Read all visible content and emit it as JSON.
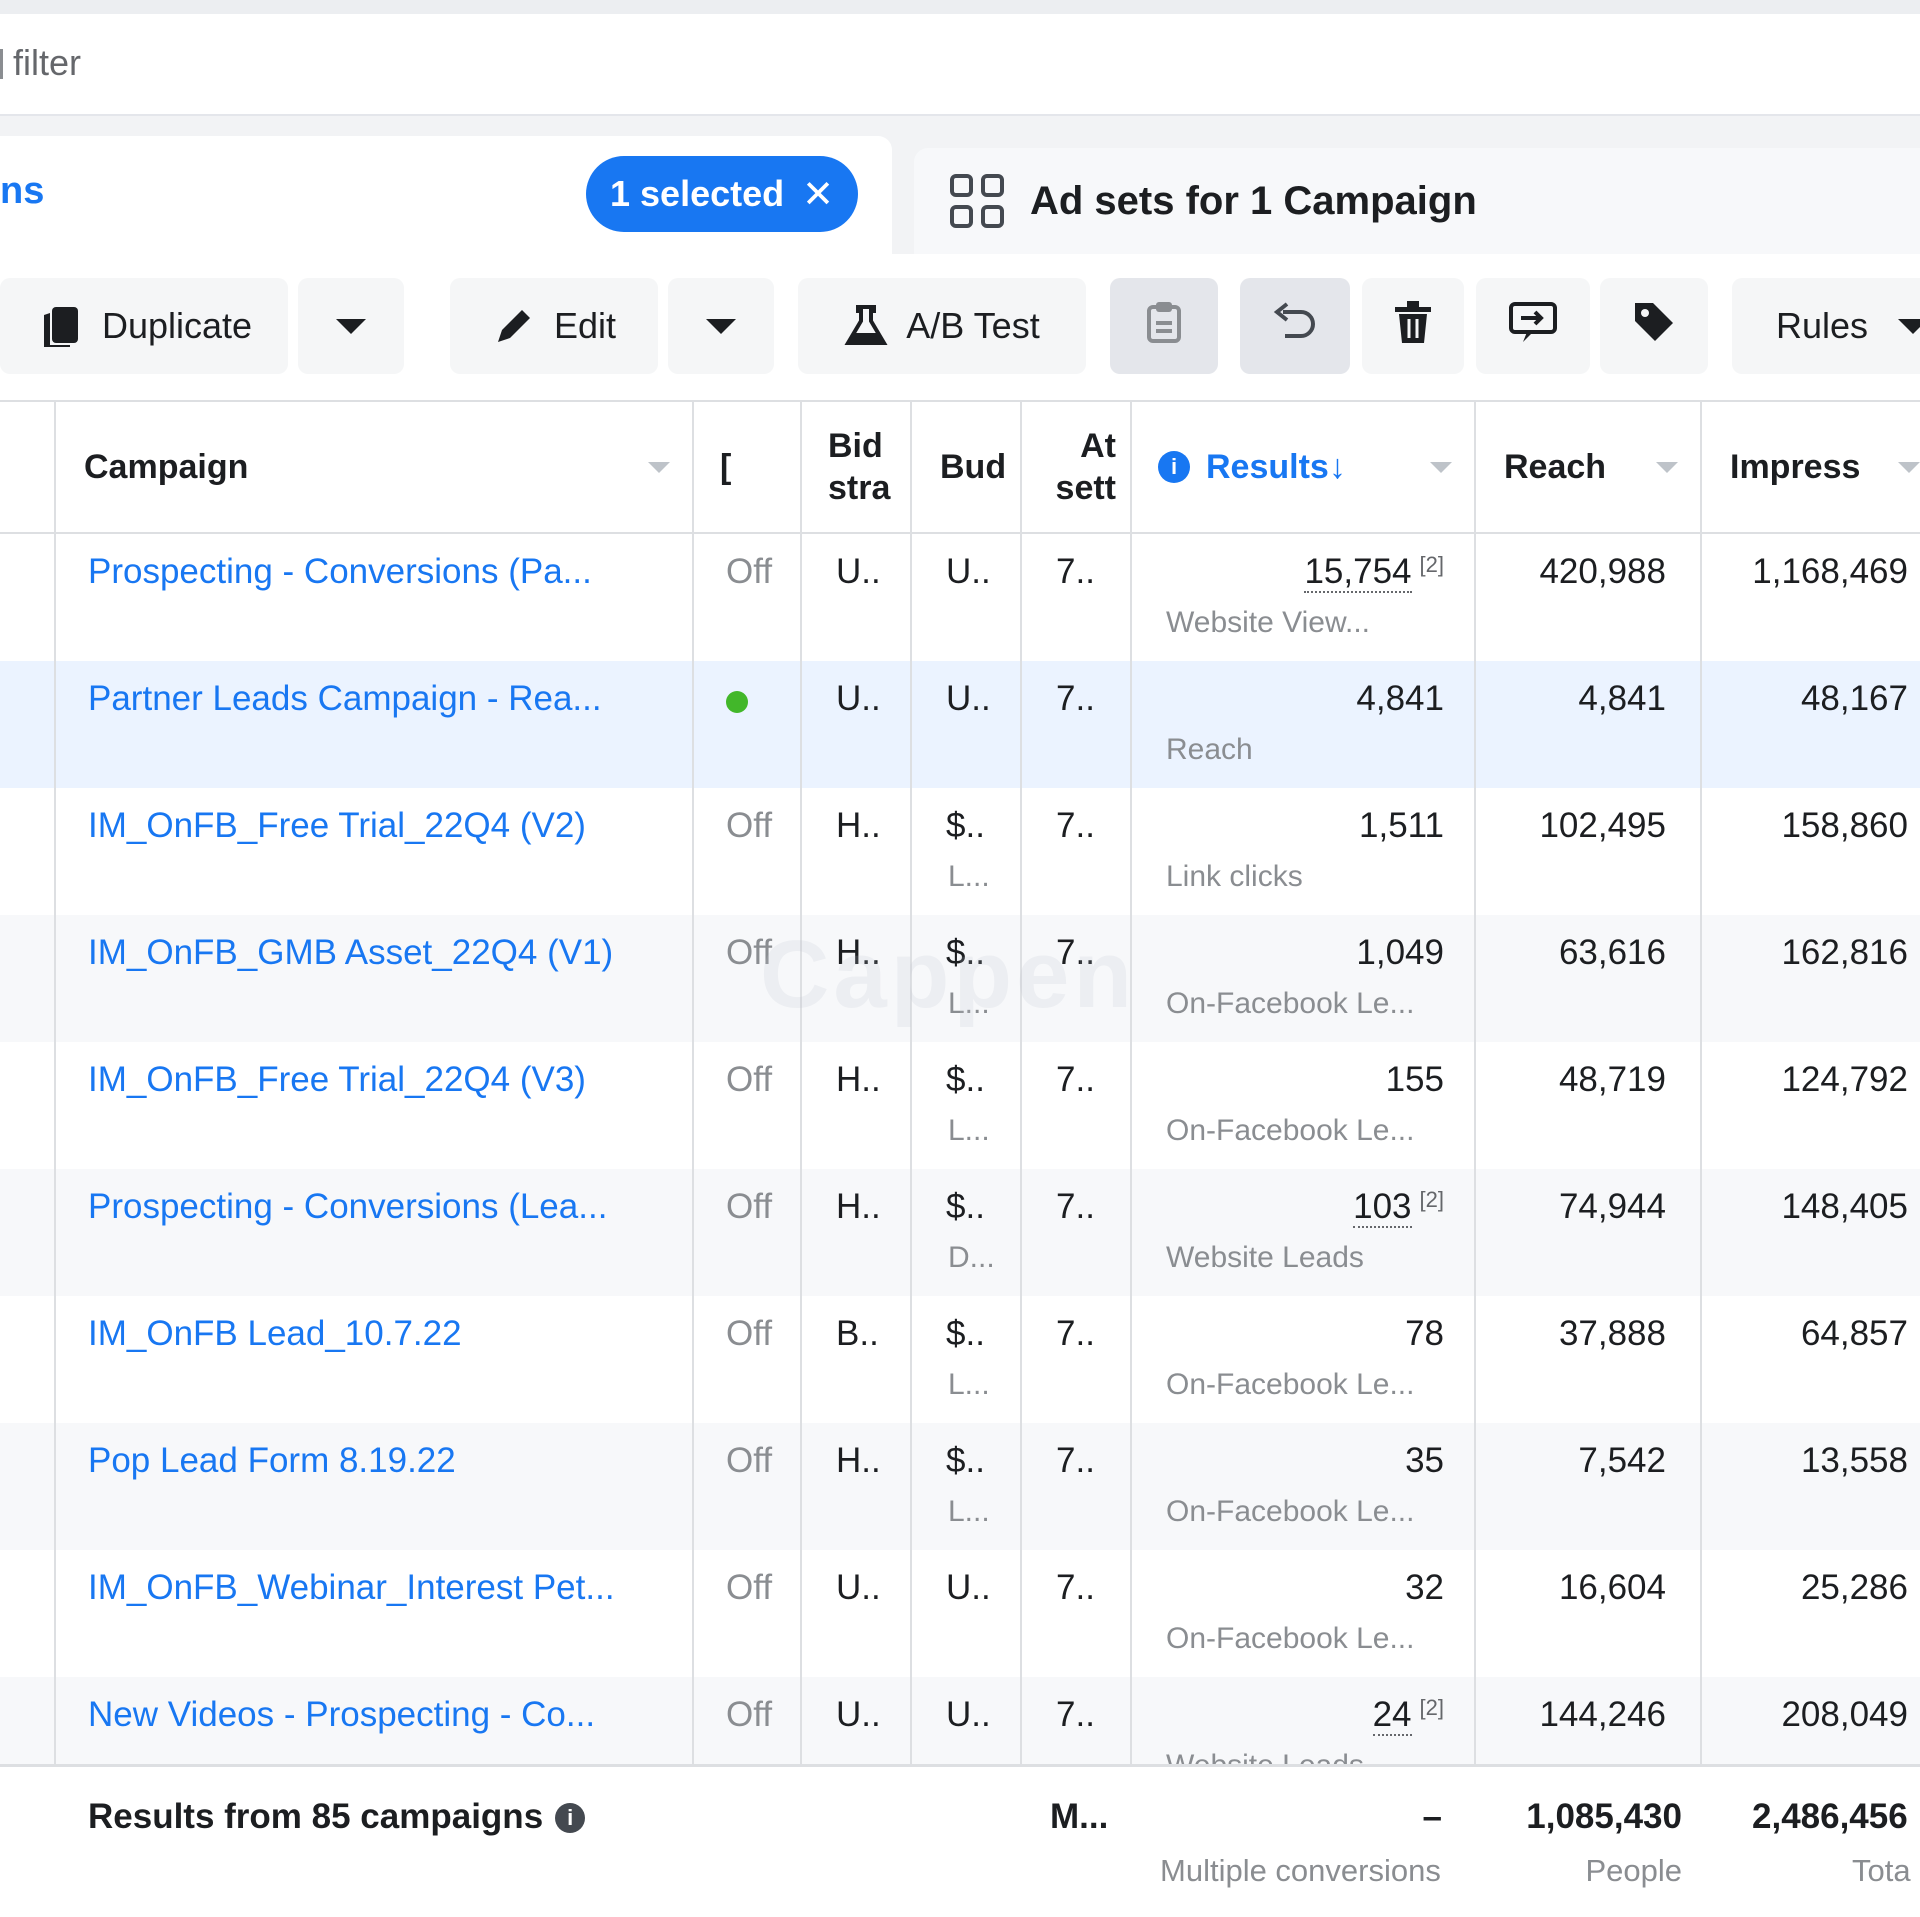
{
  "filter": {
    "placeholder": "filter"
  },
  "tabs": {
    "campaigns_label": "ns",
    "selected_text": "1 selected",
    "selected_close": "✕",
    "adsets_label": "Ad sets for 1 Campaign"
  },
  "toolbar": {
    "duplicate": "Duplicate",
    "edit": "Edit",
    "ab_test": "A/B Test",
    "rules": "Rules"
  },
  "table": {
    "headers": {
      "campaign": "Campaign",
      "delivery": "[",
      "bid_1": "Bid",
      "bid_2": "stra",
      "budget": "Bud",
      "attr_1": "At",
      "attr_2": "sett",
      "results": "Results",
      "results_arrow": "↓",
      "reach": "Reach",
      "impressions": "Impress"
    },
    "rows": [
      {
        "name": "Prospecting - Conversions (Pa...",
        "status": "Off",
        "bid": "U..",
        "budget": "U..",
        "budget_sub": "",
        "attr": "7..",
        "results": "15,754",
        "results_sup": "[2]",
        "results_type": "Website View...",
        "reach": "420,988",
        "impressions": "1,168,469"
      },
      {
        "name": "Partner Leads Campaign - Rea...",
        "status": "",
        "bid": "U..",
        "budget": "U..",
        "budget_sub": "",
        "attr": "7..",
        "results": "4,841",
        "results_sup": "",
        "results_type": "Reach",
        "reach": "4,841",
        "impressions": "48,167"
      },
      {
        "name": "IM_OnFB_Free Trial_22Q4 (V2)",
        "status": "Off",
        "bid": "H..",
        "budget": "$..",
        "budget_sub": "L...",
        "attr": "7..",
        "results": "1,511",
        "results_sup": "",
        "results_type": "Link clicks",
        "reach": "102,495",
        "impressions": "158,860"
      },
      {
        "name": "IM_OnFB_GMB Asset_22Q4 (V1)",
        "status": "Off",
        "bid": "H..",
        "budget": "$..",
        "budget_sub": "L...",
        "attr": "7..",
        "results": "1,049",
        "results_sup": "",
        "results_type": "On-Facebook Le...",
        "reach": "63,616",
        "impressions": "162,816"
      },
      {
        "name": "IM_OnFB_Free Trial_22Q4 (V3)",
        "status": "Off",
        "bid": "H..",
        "budget": "$..",
        "budget_sub": "L...",
        "attr": "7..",
        "results": "155",
        "results_sup": "",
        "results_type": "On-Facebook Le...",
        "reach": "48,719",
        "impressions": "124,792"
      },
      {
        "name": "Prospecting - Conversions (Lea...",
        "status": "Off",
        "bid": "H..",
        "budget": "$..",
        "budget_sub": "D...",
        "attr": "7..",
        "results": "103",
        "results_sup": "[2]",
        "results_type": "Website Leads",
        "reach": "74,944",
        "impressions": "148,405"
      },
      {
        "name": "IM_OnFB Lead_10.7.22",
        "status": "Off",
        "bid": "B..",
        "budget": "$..",
        "budget_sub": "L...",
        "attr": "7..",
        "results": "78",
        "results_sup": "",
        "results_type": "On-Facebook Le...",
        "reach": "37,888",
        "impressions": "64,857"
      },
      {
        "name": "Pop Lead Form 8.19.22",
        "status": "Off",
        "bid": "H..",
        "budget": "$..",
        "budget_sub": "L...",
        "attr": "7..",
        "results": "35",
        "results_sup": "",
        "results_type": "On-Facebook Le...",
        "reach": "7,542",
        "impressions": "13,558"
      },
      {
        "name": "IM_OnFB_Webinar_Interest Pet...",
        "status": "Off",
        "bid": "U..",
        "budget": "U..",
        "budget_sub": "",
        "attr": "7..",
        "results": "32",
        "results_sup": "",
        "results_type": "On-Facebook Le...",
        "reach": "16,604",
        "impressions": "25,286"
      },
      {
        "name": "New Videos - Prospecting - Co...",
        "status": "Off",
        "bid": "U..",
        "budget": "U..",
        "budget_sub": "",
        "attr": "7..",
        "results": "24",
        "results_sup": "[2]",
        "results_type": "Website Leads",
        "reach": "144,246",
        "impressions": "208,049"
      }
    ],
    "footer": {
      "label": "Results from 85 campaigns",
      "attr": "M...",
      "results": "–",
      "results_sub": "Multiple conversions",
      "reach": "1,085,430",
      "reach_sub": "People",
      "impressions": "2,486,456",
      "impressions_sub": "Tota"
    }
  },
  "watermark": "Cappen",
  "colors": {
    "accent": "#1877f2",
    "active_dot": "#42b72a",
    "selected_row": "#ebf3ff"
  }
}
